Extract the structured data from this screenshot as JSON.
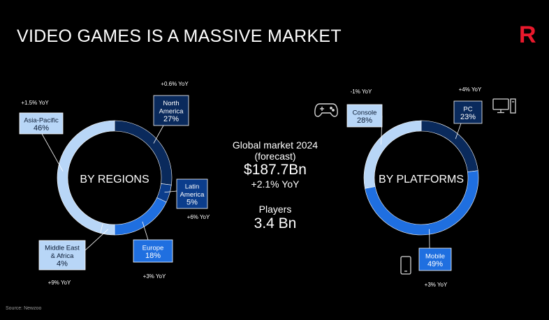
{
  "header": {
    "title": "VIDEO GAMES IS A MASSIVE MARKET",
    "logo_text": "R",
    "vertical_note": "",
    "source": "Source: Newzoo"
  },
  "colors": {
    "background": "#000000",
    "dark_navy": "#0a2a5c",
    "navy": "#0b3d8c",
    "bright_blue": "#1f6fe0",
    "light_blue": "#b8d6f7",
    "logo_red": "#e8192c"
  },
  "center_stats": {
    "market_label_line1": "Global market 2024",
    "market_label_line2": "(forecast)",
    "market_value": "$187.7Bn",
    "market_growth": "+2.1% YoY",
    "players_label": "Players",
    "players_value": "3.4 Bn"
  },
  "icons": [
    "gamepad-icon",
    "monitor-icon",
    "phone-icon"
  ],
  "chart_data": [
    {
      "type": "pie",
      "donut": true,
      "title": "BY REGIONS",
      "unit": "%",
      "categories": [
        "North America",
        "Latin America",
        "Europe",
        "Middle East & Africa",
        "Asia-Pacific"
      ],
      "values": [
        27,
        5,
        18,
        4,
        46
      ],
      "labels": [
        {
          "lines": [
            "North",
            "America",
            "27%"
          ],
          "yoy": "+0.6% YoY",
          "color": "#0a2a5c"
        },
        {
          "lines": [
            "Latin",
            "America",
            "5%"
          ],
          "yoy": "+6% YoY",
          "color": "#0b3d8c"
        },
        {
          "lines": [
            "Europe",
            "18%"
          ],
          "yoy": "+3% YoY",
          "color": "#1f6fe0"
        },
        {
          "lines": [
            "Middle East",
            "& Africa",
            "4%"
          ],
          "yoy": "+9% YoY",
          "color": "#b8d6f7"
        },
        {
          "lines": [
            "Asia-Pacific",
            "46%"
          ],
          "yoy": "+1.5% YoY",
          "color": "#b8d6f7"
        }
      ]
    },
    {
      "type": "pie",
      "donut": true,
      "title": "BY PLATFORMS",
      "unit": "%",
      "categories": [
        "PC",
        "Mobile",
        "Console"
      ],
      "values": [
        23,
        49,
        28
      ],
      "labels": [
        {
          "lines": [
            "PC",
            "23%"
          ],
          "yoy": "+4% YoY",
          "color": "#0a2a5c"
        },
        {
          "lines": [
            "Mobile",
            "49%"
          ],
          "yoy": "+3% YoY",
          "color": "#1f6fe0"
        },
        {
          "lines": [
            "Console",
            "28%"
          ],
          "yoy": "-1% YoY",
          "color": "#b8d6f7"
        }
      ]
    }
  ]
}
